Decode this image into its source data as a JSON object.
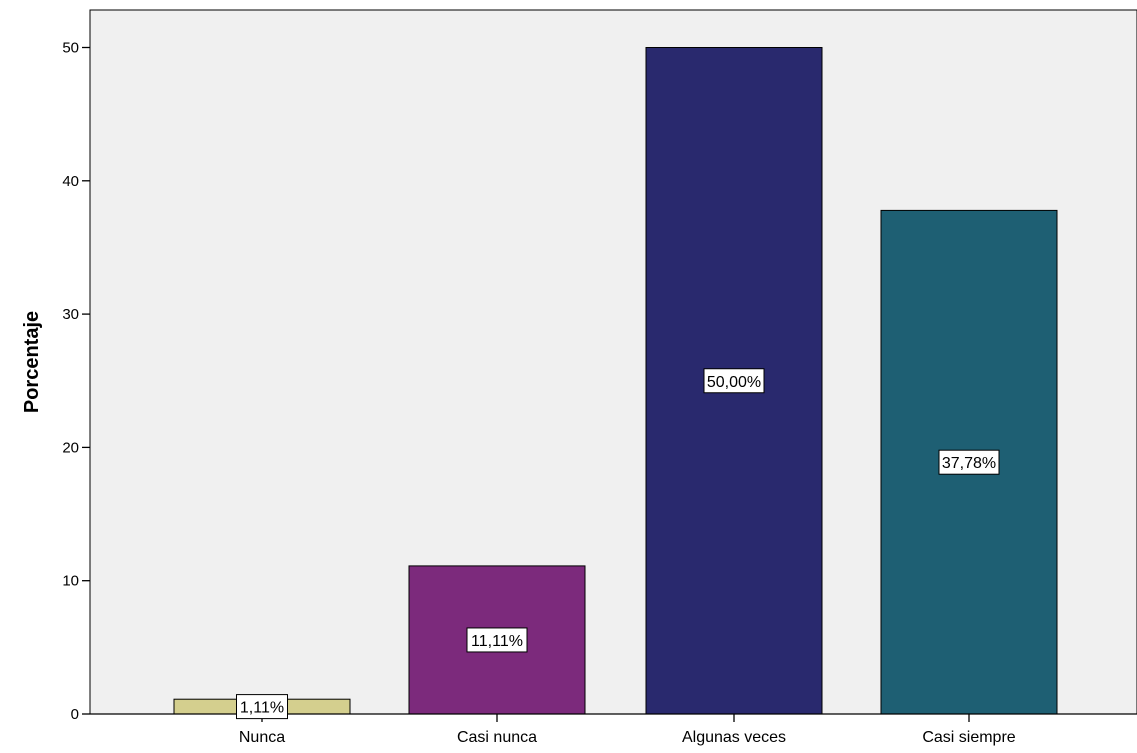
{
  "chart_data": {
    "type": "bar",
    "title": "",
    "xlabel": "",
    "ylabel": "Porcentaje",
    "ylim": [
      0,
      52
    ],
    "yticks": [
      0,
      10,
      20,
      30,
      40,
      50
    ],
    "grid": false,
    "legend": "none",
    "plot_background": "#f0f0f0",
    "categories": [
      "Nunca",
      "Casi nunca",
      "Algunas veces",
      "Casi siempre"
    ],
    "values": [
      1.11,
      11.11,
      50.0,
      37.78
    ],
    "data_labels": [
      "1,11%",
      "11,11%",
      "50,00%",
      "37,78%"
    ],
    "colors": [
      "#d4cf8e",
      "#7c2a7c",
      "#29296e",
      "#1e5f73"
    ]
  }
}
